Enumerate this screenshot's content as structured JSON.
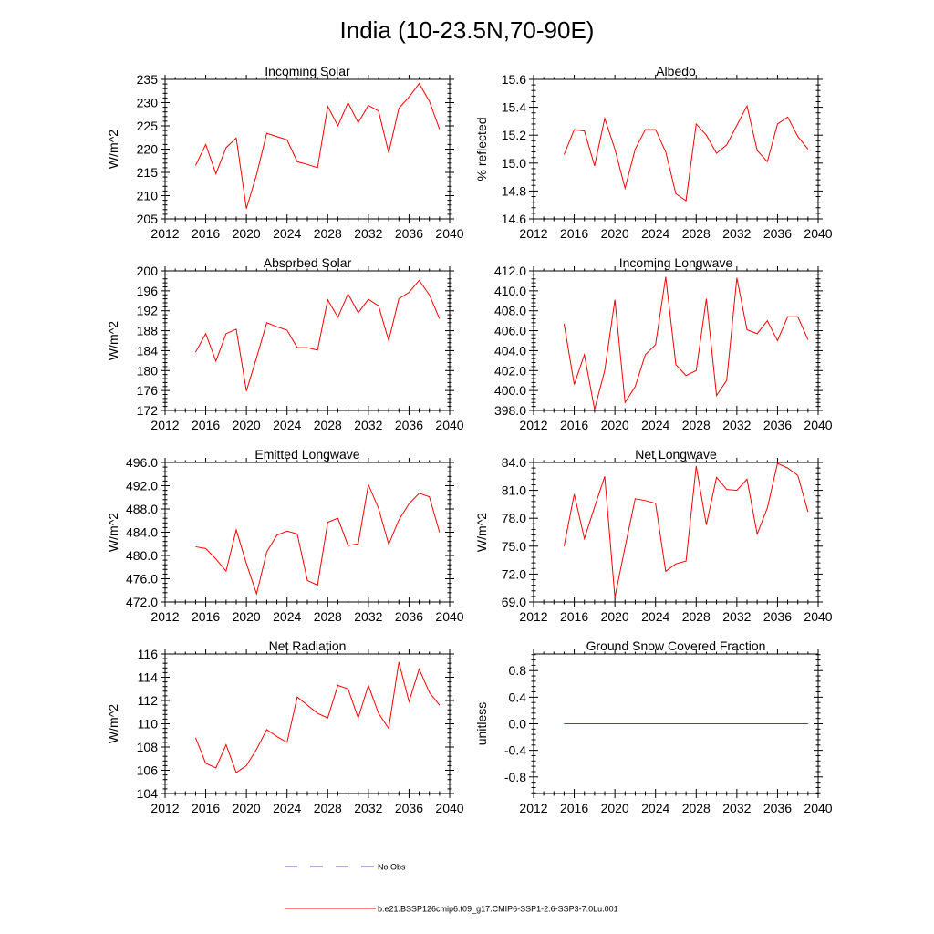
{
  "page": {
    "title": "India (10-23.5N,70-90E)"
  },
  "legend": {
    "entries": [
      {
        "label": "No Obs",
        "style": "dashed",
        "color": "#5a5ad8"
      },
      {
        "label": "b.e21.BSSP126cmip6.f09_g17.CMIP6-SSP1-2.6-SSP3-7.0Lu.001",
        "style": "solid",
        "color": "#ff0000"
      }
    ]
  },
  "colors": {
    "series": "#ff0000",
    "no_obs": "#5a5ad8",
    "axis": "#000000"
  },
  "chart_data": [
    {
      "type": "line",
      "title": "Incoming Solar",
      "ylabel": "W/m^2",
      "xlim": [
        2012,
        2040
      ],
      "ylim": [
        205,
        235
      ],
      "xticks": [
        2012,
        2016,
        2020,
        2024,
        2028,
        2032,
        2036,
        2040
      ],
      "yticks": [
        205,
        210,
        215,
        220,
        225,
        230,
        235
      ],
      "ytick_labels": [
        "205",
        "210",
        "215",
        "220",
        "225",
        "230",
        "235"
      ],
      "x": [
        2015,
        2016,
        2017,
        2018,
        2019,
        2020,
        2021,
        2022,
        2023,
        2024,
        2025,
        2026,
        2027,
        2028,
        2029,
        2030,
        2031,
        2032,
        2033,
        2034,
        2035,
        2036,
        2037,
        2038,
        2039
      ],
      "series": [
        {
          "values": [
            216.5,
            221.0,
            214.7,
            220.3,
            222.4,
            207.2,
            214.5,
            223.4,
            222.7,
            222.0,
            217.3,
            216.7,
            216.0,
            229.2,
            225.0,
            230.0,
            225.7,
            229.4,
            228.2,
            219.2,
            228.8,
            231.2,
            234.1,
            230.3,
            224.3
          ]
        }
      ]
    },
    {
      "type": "line",
      "title": "Albedo",
      "ylabel": "% reflected",
      "xlim": [
        2012,
        2040
      ],
      "ylim": [
        14.6,
        15.6
      ],
      "xticks": [
        2012,
        2016,
        2020,
        2024,
        2028,
        2032,
        2036,
        2040
      ],
      "yticks": [
        14.6,
        14.8,
        15.0,
        15.2,
        15.4,
        15.6
      ],
      "ytick_labels": [
        "14.6",
        "14.8",
        "15.0",
        "15.2",
        "15.4",
        "15.6"
      ],
      "x": [
        2015,
        2016,
        2017,
        2018,
        2019,
        2020,
        2021,
        2022,
        2023,
        2024,
        2025,
        2026,
        2027,
        2028,
        2029,
        2030,
        2031,
        2032,
        2033,
        2034,
        2035,
        2036,
        2037,
        2038,
        2039
      ],
      "series": [
        {
          "values": [
            15.06,
            15.24,
            15.23,
            14.98,
            15.32,
            15.1,
            14.82,
            15.1,
            15.24,
            15.24,
            15.08,
            14.78,
            14.73,
            15.28,
            15.2,
            15.07,
            15.13,
            15.27,
            15.41,
            15.09,
            15.01,
            15.28,
            15.33,
            15.19,
            15.1
          ]
        }
      ]
    },
    {
      "type": "line",
      "title": "Absorbed Solar",
      "ylabel": "W/m^2",
      "xlim": [
        2012,
        2040
      ],
      "ylim": [
        172,
        200
      ],
      "xticks": [
        2012,
        2016,
        2020,
        2024,
        2028,
        2032,
        2036,
        2040
      ],
      "yticks": [
        172,
        176,
        180,
        184,
        188,
        192,
        196,
        200
      ],
      "ytick_labels": [
        "172",
        "176",
        "180",
        "184",
        "188",
        "192",
        "196",
        "200"
      ],
      "x": [
        2015,
        2016,
        2017,
        2018,
        2019,
        2020,
        2021,
        2022,
        2023,
        2024,
        2025,
        2026,
        2027,
        2028,
        2029,
        2030,
        2031,
        2032,
        2033,
        2034,
        2035,
        2036,
        2037,
        2038,
        2039
      ],
      "series": [
        {
          "values": [
            183.7,
            187.4,
            181.9,
            187.4,
            188.3,
            175.9,
            182.6,
            189.6,
            188.8,
            188.1,
            184.6,
            184.6,
            184.1,
            194.2,
            190.7,
            195.4,
            191.6,
            194.3,
            193.0,
            186.0,
            194.4,
            195.7,
            198.1,
            195.2,
            190.4
          ]
        }
      ]
    },
    {
      "type": "line",
      "title": "Incoming Longwave",
      "ylabel": "",
      "xlim": [
        2012,
        2040
      ],
      "ylim": [
        398.0,
        412.0
      ],
      "xticks": [
        2012,
        2016,
        2020,
        2024,
        2028,
        2032,
        2036,
        2040
      ],
      "yticks": [
        398,
        400,
        402,
        404,
        406,
        408,
        410,
        412
      ],
      "ytick_labels": [
        "398.0",
        "400.0",
        "402.0",
        "404.0",
        "406.0",
        "408.0",
        "410.0",
        "412.0"
      ],
      "x": [
        2015,
        2016,
        2017,
        2018,
        2019,
        2020,
        2021,
        2022,
        2023,
        2024,
        2025,
        2026,
        2027,
        2028,
        2029,
        2030,
        2031,
        2032,
        2033,
        2034,
        2035,
        2036,
        2037,
        2038,
        2039
      ],
      "series": [
        {
          "values": [
            406.7,
            400.6,
            403.6,
            398.1,
            402.0,
            409.1,
            398.8,
            400.4,
            403.6,
            404.6,
            411.4,
            402.6,
            401.5,
            402.0,
            409.2,
            399.5,
            401.0,
            411.3,
            406.1,
            405.7,
            407.0,
            405.0,
            407.4,
            407.4,
            405.1
          ]
        }
      ]
    },
    {
      "type": "line",
      "title": "Emitted Longwave",
      "ylabel": "W/m^2",
      "xlim": [
        2012,
        2040
      ],
      "ylim": [
        472.0,
        496.0
      ],
      "xticks": [
        2012,
        2016,
        2020,
        2024,
        2028,
        2032,
        2036,
        2040
      ],
      "yticks": [
        472,
        476,
        480,
        484,
        488,
        492,
        496
      ],
      "ytick_labels": [
        "472.0",
        "476.0",
        "480.0",
        "484.0",
        "488.0",
        "492.0",
        "496.0"
      ],
      "x": [
        2015,
        2016,
        2017,
        2018,
        2019,
        2020,
        2021,
        2022,
        2023,
        2024,
        2025,
        2026,
        2027,
        2028,
        2029,
        2030,
        2031,
        2032,
        2033,
        2034,
        2035,
        2036,
        2037,
        2038,
        2039
      ],
      "series": [
        {
          "values": [
            481.5,
            481.2,
            479.4,
            477.3,
            484.4,
            478.6,
            473.4,
            480.6,
            483.5,
            484.2,
            483.7,
            475.7,
            474.9,
            485.7,
            486.4,
            481.7,
            482.0,
            492.2,
            488.1,
            481.9,
            486.1,
            488.9,
            490.7,
            490.1,
            484.0
          ]
        }
      ]
    },
    {
      "type": "line",
      "title": "Net Longwave",
      "ylabel": "W/m^2",
      "xlim": [
        2012,
        2040
      ],
      "ylim": [
        69.0,
        84.0
      ],
      "xticks": [
        2012,
        2016,
        2020,
        2024,
        2028,
        2032,
        2036,
        2040
      ],
      "yticks": [
        69,
        72,
        75,
        78,
        81,
        84
      ],
      "ytick_labels": [
        "69.0",
        "72.0",
        "75.0",
        "78.0",
        "81.0",
        "84.0"
      ],
      "x": [
        2015,
        2016,
        2017,
        2018,
        2019,
        2020,
        2021,
        2022,
        2023,
        2024,
        2025,
        2026,
        2027,
        2028,
        2029,
        2030,
        2031,
        2032,
        2033,
        2034,
        2035,
        2036,
        2037,
        2038,
        2039
      ],
      "series": [
        {
          "values": [
            75.0,
            80.6,
            75.8,
            79.2,
            82.5,
            69.5,
            74.9,
            80.1,
            79.9,
            79.6,
            72.3,
            73.1,
            73.4,
            83.6,
            77.3,
            82.4,
            81.1,
            81.0,
            82.2,
            76.3,
            79.1,
            83.9,
            83.4,
            82.6,
            78.7
          ]
        }
      ]
    },
    {
      "type": "line",
      "title": "Net Radiation",
      "ylabel": "W/m^2",
      "xlim": [
        2012,
        2040
      ],
      "ylim": [
        104,
        116
      ],
      "xticks": [
        2012,
        2016,
        2020,
        2024,
        2028,
        2032,
        2036,
        2040
      ],
      "yticks": [
        104,
        106,
        108,
        110,
        112,
        114,
        116
      ],
      "ytick_labels": [
        "104",
        "106",
        "108",
        "110",
        "112",
        "114",
        "116"
      ],
      "x": [
        2015,
        2016,
        2017,
        2018,
        2019,
        2020,
        2021,
        2022,
        2023,
        2024,
        2025,
        2026,
        2027,
        2028,
        2029,
        2030,
        2031,
        2032,
        2033,
        2034,
        2035,
        2036,
        2037,
        2038,
        2039
      ],
      "series": [
        {
          "values": [
            108.8,
            106.6,
            106.2,
            108.2,
            105.8,
            106.4,
            107.8,
            109.5,
            108.9,
            108.4,
            112.3,
            111.6,
            110.9,
            110.5,
            113.3,
            113.0,
            110.5,
            113.3,
            110.9,
            109.6,
            115.3,
            111.9,
            114.7,
            112.7,
            111.6
          ]
        }
      ]
    },
    {
      "type": "line",
      "title": "Ground Snow Covered Fraction",
      "ylabel": "unitless",
      "xlim": [
        2012,
        2040
      ],
      "ylim": [
        -1.05,
        1.05
      ],
      "xticks": [
        2012,
        2016,
        2020,
        2024,
        2028,
        2032,
        2036,
        2040
      ],
      "yticks": [
        -0.8,
        -0.4,
        0.0,
        0.4,
        0.8
      ],
      "ytick_labels": [
        "-0.8",
        "-0.4",
        "0.0",
        "0.4",
        "0.8"
      ],
      "x": [
        2015,
        2039
      ],
      "series": [
        {
          "values": [
            0.0,
            0.0
          ]
        }
      ]
    }
  ]
}
